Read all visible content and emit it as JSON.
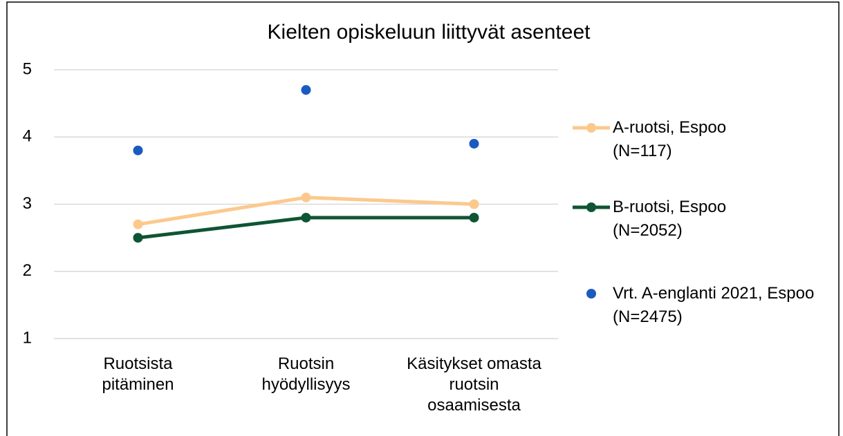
{
  "chart_data": {
    "type": "line",
    "title": "Kielten opiskeluun liittyvät asenteet",
    "categories": [
      "Ruotsista pitäminen",
      "Ruotsin hyödyllisyys",
      "Käsitykset omasta ruotsin osaamisesta"
    ],
    "series": [
      {
        "name": "A-ruotsi, Espoo (N=117)",
        "color": "#fcc98d",
        "type": "line",
        "values": [
          2.7,
          3.1,
          3.0
        ]
      },
      {
        "name": "B-ruotsi, Espoo (N=2052)",
        "color": "#0e5533",
        "type": "line",
        "values": [
          2.5,
          2.8,
          2.8
        ]
      },
      {
        "name": "Vrt. A-englanti 2021, Espoo (N=2475)",
        "color": "#1a5bbf",
        "type": "scatter",
        "values": [
          3.8,
          4.7,
          3.9
        ]
      }
    ],
    "ylim": [
      1,
      5
    ],
    "yticks": [
      1,
      2,
      3,
      4,
      5
    ],
    "grid": true,
    "legend": "right"
  }
}
